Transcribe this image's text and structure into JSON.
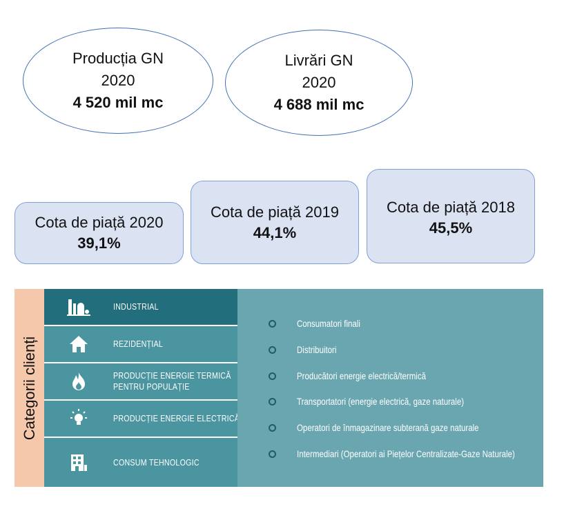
{
  "ellipses": {
    "production": {
      "line1": "Producția GN",
      "line2": "2020",
      "value": "4 520 mil mc"
    },
    "deliveries": {
      "line1": "Livrări GN",
      "line2": "2020",
      "value": "4 688 mil mc"
    }
  },
  "market_share": {
    "y2020": {
      "label": "Cota de piață 2020",
      "value": "39,1%"
    },
    "y2019": {
      "label": "Cota de piață 2019",
      "value": "44,1%"
    },
    "y2018": {
      "label": "Cota de piață 2018",
      "value": "45,5%"
    }
  },
  "categories": {
    "label": "Categorii clienți",
    "items": [
      {
        "icon": "factory-icon",
        "line1": "INDUSTRIAL",
        "line2": ""
      },
      {
        "icon": "house-icon",
        "line1": "REZIDENȚIAL",
        "line2": ""
      },
      {
        "icon": "flame-icon",
        "line1": "PRODUCȚIE ENERGIE TERMICĂ",
        "line2": "PENTRU POPULAȚIE"
      },
      {
        "icon": "lightbulb-icon",
        "line1": "PRODUCȚIE ENERGIE ELECTRICĂ",
        "line2": ""
      },
      {
        "icon": "building-icon",
        "line1": "CONSUM TEHNOLOGIC",
        "line2": ""
      }
    ],
    "details": [
      "Consumatori finali",
      "Distribuitori",
      "Producători energie electrică/termică",
      "Transportatori (energie electrică, gaze naturale)",
      "Operatori de înmagazinare subterană gaze naturale",
      "Intermediari (Operatori ai Piețelor Centralizate-Gaze Naturale)"
    ]
  }
}
